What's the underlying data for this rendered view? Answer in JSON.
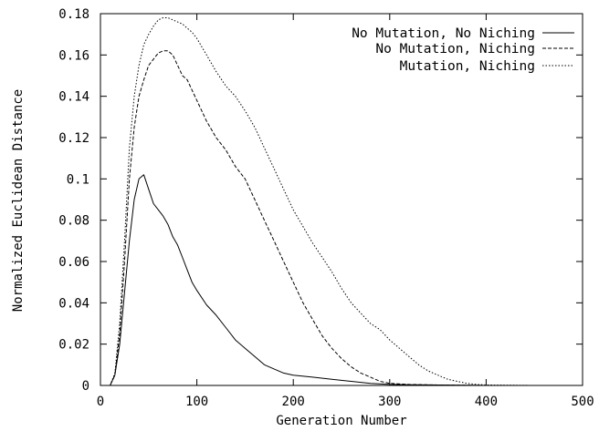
{
  "chart_data": {
    "type": "line",
    "xlabel": "Generation Number",
    "ylabel": "Normalized Euclidean Distance",
    "xlim": [
      0,
      500
    ],
    "ylim": [
      0,
      0.18
    ],
    "x_ticks": [
      0,
      100,
      200,
      300,
      400,
      500
    ],
    "x_tick_labels": [
      "0",
      "100",
      "200",
      "300",
      "400",
      "500"
    ],
    "y_ticks": [
      0,
      0.02,
      0.04,
      0.06,
      0.08,
      0.1,
      0.12,
      0.14,
      0.16,
      0.18
    ],
    "y_tick_labels": [
      "0",
      "0.02",
      "0.04",
      "0.06",
      "0.08",
      "0.1",
      "0.12",
      "0.14",
      "0.16",
      "0.18"
    ],
    "grid": false,
    "legend_position": "top-right",
    "series": [
      {
        "name": "No Mutation, No Niching",
        "style": "solid",
        "x": [
          0,
          10,
          15,
          20,
          25,
          30,
          35,
          40,
          45,
          50,
          55,
          60,
          65,
          70,
          75,
          80,
          85,
          90,
          95,
          100,
          110,
          120,
          130,
          140,
          150,
          160,
          170,
          180,
          190,
          200,
          220,
          240,
          260,
          280,
          300,
          320,
          350,
          380,
          400,
          450,
          500
        ],
        "y": [
          0,
          0,
          0.005,
          0.02,
          0.045,
          0.07,
          0.09,
          0.1,
          0.102,
          0.095,
          0.088,
          0.085,
          0.082,
          0.078,
          0.072,
          0.068,
          0.062,
          0.056,
          0.05,
          0.046,
          0.039,
          0.034,
          0.028,
          0.022,
          0.018,
          0.014,
          0.01,
          0.008,
          0.006,
          0.005,
          0.004,
          0.003,
          0.002,
          0.001,
          0.0005,
          0.0003,
          0.0002,
          0.0001,
          0,
          0,
          0
        ]
      },
      {
        "name": "No Mutation, Niching",
        "style": "dashed",
        "x": [
          0,
          10,
          15,
          20,
          25,
          30,
          35,
          40,
          45,
          50,
          55,
          60,
          65,
          70,
          75,
          80,
          85,
          90,
          95,
          100,
          110,
          120,
          130,
          140,
          150,
          160,
          170,
          180,
          190,
          200,
          210,
          220,
          230,
          240,
          250,
          260,
          270,
          280,
          290,
          300,
          320,
          350,
          380,
          400,
          450,
          500
        ],
        "y": [
          0,
          0,
          0.005,
          0.025,
          0.06,
          0.1,
          0.125,
          0.14,
          0.148,
          0.155,
          0.158,
          0.161,
          0.162,
          0.162,
          0.16,
          0.155,
          0.15,
          0.148,
          0.143,
          0.138,
          0.128,
          0.12,
          0.114,
          0.106,
          0.1,
          0.09,
          0.08,
          0.07,
          0.06,
          0.05,
          0.04,
          0.032,
          0.024,
          0.018,
          0.013,
          0.009,
          0.006,
          0.004,
          0.002,
          0.001,
          0.0005,
          0.0002,
          0.0001,
          0,
          0,
          0
        ]
      },
      {
        "name": "Mutation, Niching",
        "style": "dotted",
        "x": [
          0,
          10,
          15,
          20,
          25,
          30,
          35,
          40,
          45,
          50,
          55,
          60,
          65,
          70,
          75,
          80,
          85,
          90,
          95,
          100,
          110,
          120,
          130,
          140,
          150,
          160,
          170,
          180,
          190,
          200,
          210,
          220,
          230,
          240,
          250,
          260,
          270,
          280,
          290,
          300,
          310,
          320,
          330,
          340,
          350,
          360,
          370,
          380,
          390,
          400,
          450,
          500
        ],
        "y": [
          0,
          0,
          0.006,
          0.03,
          0.07,
          0.115,
          0.14,
          0.155,
          0.165,
          0.17,
          0.174,
          0.177,
          0.178,
          0.178,
          0.177,
          0.176,
          0.175,
          0.173,
          0.171,
          0.168,
          0.16,
          0.152,
          0.145,
          0.14,
          0.133,
          0.125,
          0.115,
          0.105,
          0.095,
          0.085,
          0.077,
          0.069,
          0.062,
          0.055,
          0.047,
          0.04,
          0.035,
          0.03,
          0.027,
          0.022,
          0.018,
          0.014,
          0.01,
          0.007,
          0.005,
          0.003,
          0.002,
          0.001,
          0.0005,
          0.0002,
          0,
          0
        ]
      }
    ]
  }
}
